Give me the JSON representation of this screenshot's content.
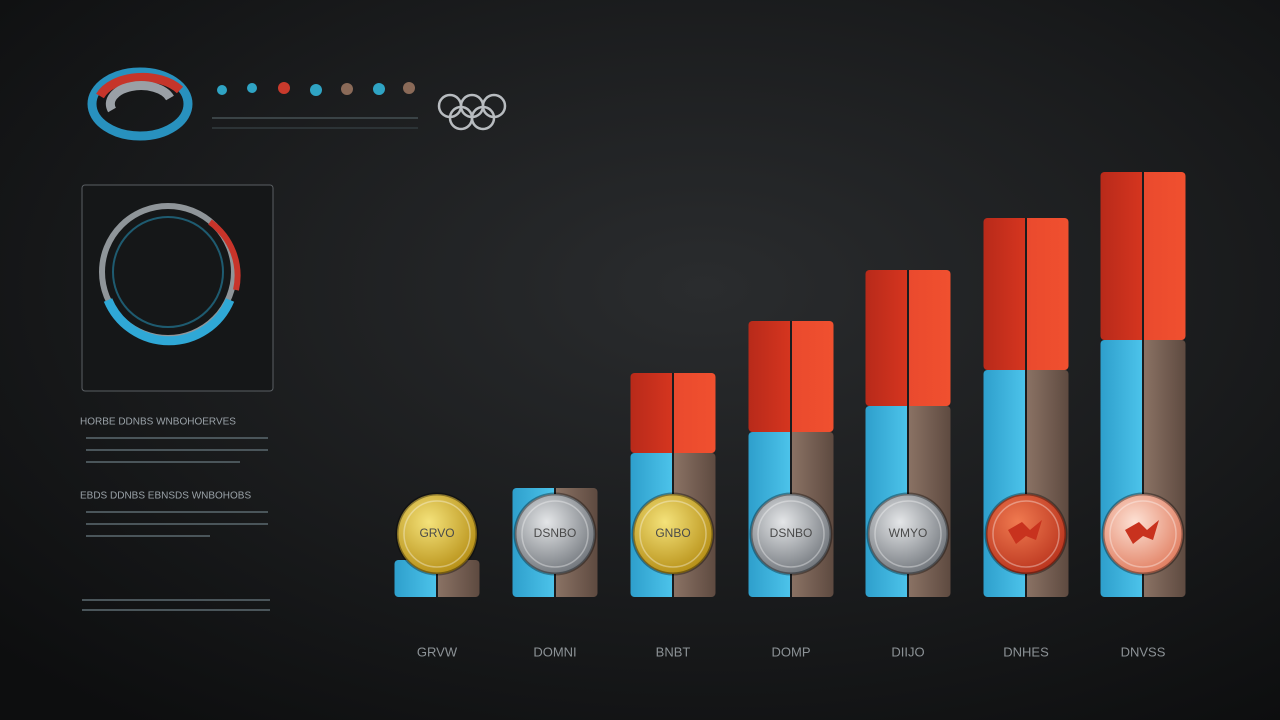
{
  "chart_data": {
    "type": "bar",
    "stacked": true,
    "panel_headings": [
      "HORBE DDNBS WNBOHOERVES",
      "EBDS DDNBS EBNSDS WNBOHOBS"
    ],
    "categories": [
      "GRVW",
      "DOMNI",
      "BNBT",
      "DOMP",
      "DIIJO",
      "DNHES",
      "DNVSS"
    ],
    "medal_labels": [
      "GRVO",
      "DSNBO",
      "GNBO",
      "DSNBO",
      "WMYO",
      null,
      null
    ],
    "series": [
      {
        "color": "#38b4de",
        "values": [
          37,
          109,
          144,
          165,
          191,
          227,
          257
        ]
      },
      {
        "color": "#e23a26",
        "values": [
          0,
          0,
          80,
          111,
          136,
          152,
          168
        ]
      }
    ],
    "ylim": [
      0,
      425
    ]
  }
}
